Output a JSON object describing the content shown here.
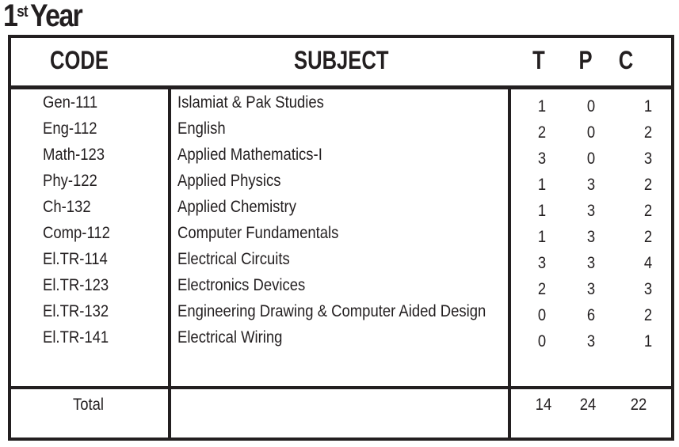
{
  "title": {
    "number": "1",
    "suffix": "st",
    "text": "Year"
  },
  "table": {
    "headers": {
      "code": "CODE",
      "subject": "SUBJECT",
      "t": "T",
      "p": "P",
      "c": "C"
    },
    "rows": [
      {
        "code": "Gen-111",
        "subject": "Islamiat & Pak Studies",
        "t": "1",
        "p": "0",
        "c": "1"
      },
      {
        "code": "Eng-112",
        "subject": "English",
        "t": "2",
        "p": "0",
        "c": "2"
      },
      {
        "code": "Math-123",
        "subject": "Applied Mathematics-I",
        "t": "3",
        "p": "0",
        "c": "3"
      },
      {
        "code": "Phy-122",
        "subject": "Applied Physics",
        "t": "1",
        "p": "3",
        "c": "2"
      },
      {
        "code": "Ch-132",
        "subject": "Applied Chemistry",
        "t": "1",
        "p": "3",
        "c": "2"
      },
      {
        "code": "Comp-112",
        "subject": "Computer Fundamentals",
        "t": "1",
        "p": "3",
        "c": "2"
      },
      {
        "code": "El.TR-114",
        "subject": "Electrical Circuits",
        "t": "3",
        "p": "3",
        "c": "4"
      },
      {
        "code": "El.TR-123",
        "subject": "Electronics Devices",
        "t": "2",
        "p": "3",
        "c": "3"
      },
      {
        "code": "El.TR-132",
        "subject": "Engineering Drawing & Computer Aided Design",
        "t": "0",
        "p": "6",
        "c": "2"
      },
      {
        "code": "El.TR-141",
        "subject": "Electrical Wiring",
        "t": "0",
        "p": "3",
        "c": "1"
      }
    ],
    "total": {
      "label": "Total",
      "t": "14",
      "p": "24",
      "c": "22"
    }
  }
}
